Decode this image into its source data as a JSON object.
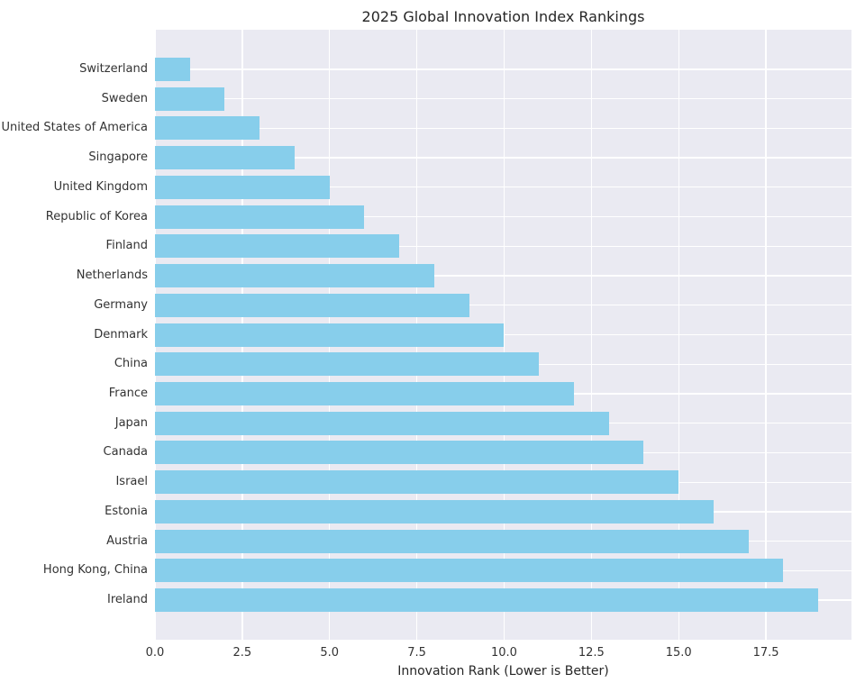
{
  "chart_data": {
    "type": "bar",
    "orientation": "horizontal",
    "title": "2025 Global Innovation Index Rankings",
    "xlabel": "Innovation Rank (Lower is Better)",
    "ylabel": "",
    "categories": [
      "Switzerland",
      "Sweden",
      "United States of America",
      "Singapore",
      "United Kingdom",
      "Republic of Korea",
      "Finland",
      "Netherlands",
      "Germany",
      "Denmark",
      "China",
      "France",
      "Japan",
      "Canada",
      "Israel",
      "Estonia",
      "Austria",
      "Hong Kong, China",
      "Ireland"
    ],
    "values": [
      1,
      2,
      3,
      4,
      5,
      6,
      7,
      8,
      9,
      10,
      11,
      12,
      13,
      14,
      15,
      16,
      17,
      18,
      19
    ],
    "xlim": [
      0,
      19.95
    ],
    "xticks": [
      0.0,
      2.5,
      5.0,
      7.5,
      10.0,
      12.5,
      15.0,
      17.5
    ],
    "xtick_labels": [
      "0.0",
      "2.5",
      "5.0",
      "7.5",
      "10.0",
      "12.5",
      "15.0",
      "17.5"
    ],
    "grid": true,
    "legend": false,
    "colors": {
      "bar": "#87ceeb",
      "plot_background": "#eaeaf2",
      "figure_background": "#ffffff",
      "grid": "#ffffff",
      "text": "#262626"
    }
  }
}
